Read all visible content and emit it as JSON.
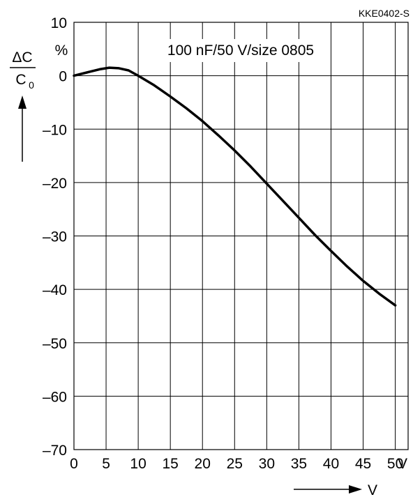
{
  "chart_data": {
    "type": "line",
    "figure_id": "KKE0402-S",
    "annotation": "100 nF/50 V/size 0805",
    "y_label": {
      "numerator": "ΔC",
      "denominator": "C",
      "subscript": "0",
      "unit": "%"
    },
    "x_unit": "V",
    "x_arrow_label": "V",
    "xlim": [
      0,
      52
    ],
    "ylim": [
      -70,
      10
    ],
    "x_ticks": [
      0,
      5,
      10,
      15,
      20,
      25,
      30,
      35,
      40,
      45,
      50
    ],
    "y_ticks": [
      10,
      0,
      -10,
      -20,
      -30,
      -40,
      -50,
      -60,
      -70
    ],
    "grid": true,
    "series": [
      {
        "x": [
          0,
          2,
          4,
          5.5,
          7,
          8.5,
          10,
          12.5,
          15,
          17.5,
          20,
          22.5,
          25,
          27.5,
          30,
          32.5,
          35,
          37.5,
          40,
          42.5,
          45,
          47.5,
          50
        ],
        "y": [
          0,
          0.6,
          1.2,
          1.5,
          1.4,
          1.0,
          0,
          -1.8,
          -3.9,
          -6.1,
          -8.5,
          -11.2,
          -14.0,
          -17.0,
          -20.2,
          -23.4,
          -26.6,
          -29.8,
          -32.8,
          -35.7,
          -38.4,
          -40.8,
          -43.0
        ]
      }
    ]
  }
}
